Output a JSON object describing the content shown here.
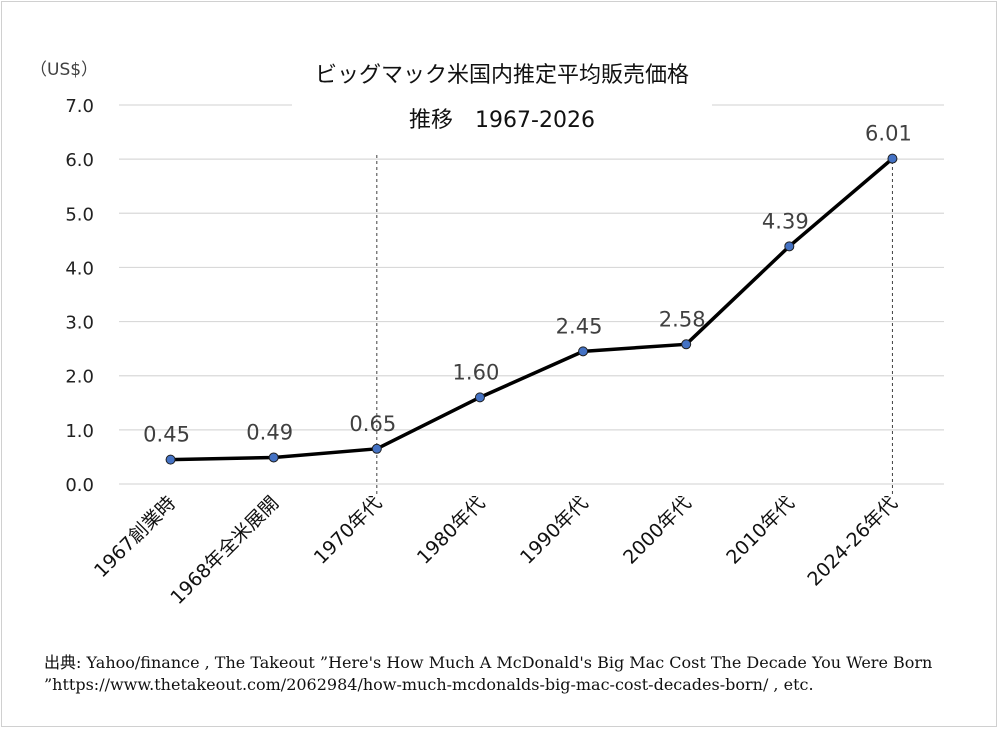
{
  "chart_data": {
    "type": "line",
    "title": "ビッグマック米国内推定平均販売価格",
    "subtitle": "推移　1967-2026",
    "unit_label": "（US$）",
    "categories": [
      "1967創業時",
      "1968年全米展開",
      "1970年代",
      "1980年代",
      "1990年代",
      "2000年代",
      "2010年代",
      "2024-26年代"
    ],
    "values": [
      0.45,
      0.49,
      0.65,
      1.6,
      2.45,
      2.58,
      4.39,
      6.01
    ],
    "data_labels": [
      "0.45",
      "0.49",
      "0.65",
      "1.60",
      "2.45",
      "2.58",
      "4.39",
      "6.01"
    ],
    "yticks": [
      "0.0",
      "1.0",
      "2.0",
      "3.0",
      "4.0",
      "5.0",
      "6.0",
      "7.0"
    ],
    "ylim": [
      0,
      7
    ],
    "grid": true,
    "legend": "none",
    "colors": {
      "line": "#000000",
      "marker": "#4472c4",
      "grid": "#d9d9d9",
      "dashed_ref": "#404040"
    }
  },
  "source_note": "出典: Yahoo/finance , The Takeout ”Here's How Much A McDonald's Big Mac Cost The Decade You Were Born ”https://www.thetakeout.com/2062984/how-much-mcdonalds-big-mac-cost-decades-born/ , etc."
}
